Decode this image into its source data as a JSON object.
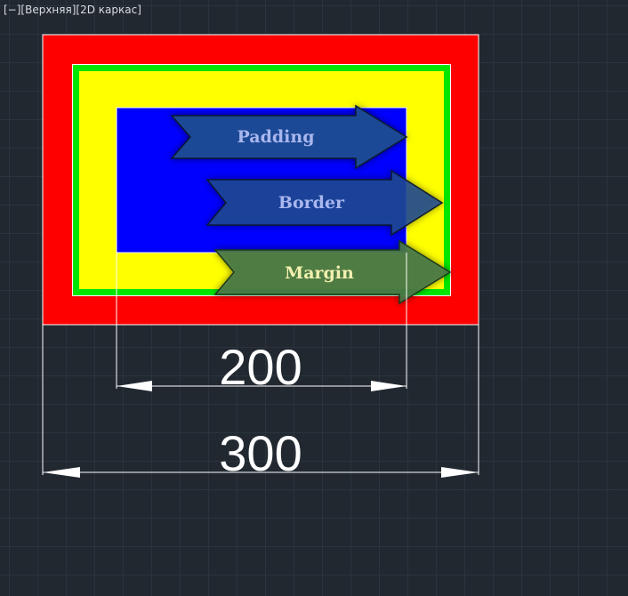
{
  "viewport": {
    "label": "[−][Верхняя][2D каркас]"
  },
  "box_model": {
    "colors": {
      "margin": "#ff0000",
      "border": "#00e600",
      "padding": "#ffff00",
      "content": "#0000ff",
      "arrow_blue": "#1f4a95",
      "arrow_green": "#4a7a48",
      "padding_text": "#a9b7ee",
      "border_text": "#a9b7ee",
      "margin_text": "#f2f0b0"
    },
    "arrows": {
      "padding": "Padding",
      "border": "Border",
      "margin": "Margin"
    }
  },
  "dimensions": {
    "inner": "200",
    "outer": "300"
  }
}
